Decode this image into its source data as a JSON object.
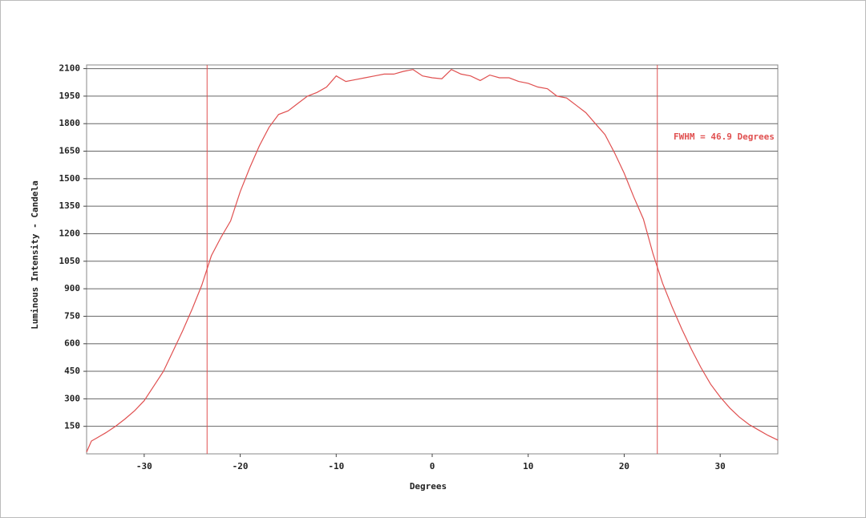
{
  "chart_data": {
    "type": "line",
    "x_label": "Degrees",
    "y_label": "Luminous Intensity - Candela",
    "annotation": "FWHM = 46.9 Degrees",
    "vlines": [
      -23.45,
      23.45
    ],
    "xlim": [
      -36,
      36
    ],
    "xticks": [
      -30,
      -20,
      -10,
      0,
      10,
      20,
      30
    ],
    "ylim": [
      0,
      2120
    ],
    "yticks": [
      150,
      300,
      450,
      600,
      750,
      900,
      1050,
      1200,
      1350,
      1500,
      1650,
      1800,
      1950,
      2100
    ],
    "grid": true,
    "color": "#e05050",
    "x": [
      -36,
      -35.5,
      -35,
      -34,
      -33,
      -32,
      -31,
      -30,
      -29,
      -28,
      -27,
      -26,
      -25,
      -24,
      -23,
      -22,
      -21,
      -20,
      -19,
      -18,
      -17,
      -16,
      -15,
      -14,
      -13,
      -12,
      -11,
      -10,
      -9,
      -8,
      -7,
      -6,
      -5,
      -4,
      -3,
      -2,
      -1,
      0,
      1,
      2,
      3,
      4,
      5,
      6,
      7,
      8,
      9,
      10,
      11,
      12,
      13,
      14,
      15,
      16,
      17,
      18,
      19,
      20,
      21,
      22,
      23,
      24,
      25,
      26,
      27,
      28,
      29,
      30,
      31,
      32,
      33,
      34,
      35,
      36
    ],
    "values": [
      10,
      70,
      85,
      115,
      150,
      190,
      235,
      290,
      370,
      450,
      560,
      670,
      790,
      920,
      1080,
      1180,
      1270,
      1430,
      1560,
      1680,
      1780,
      1850,
      1870,
      1910,
      1950,
      1970,
      2000,
      2060,
      2030,
      2040,
      2050,
      2060,
      2070,
      2070,
      2085,
      2095,
      2060,
      2050,
      2045,
      2095,
      2070,
      2060,
      2035,
      2065,
      2050,
      2050,
      2030,
      2020,
      2000,
      1990,
      1950,
      1940,
      1900,
      1860,
      1800,
      1740,
      1640,
      1530,
      1400,
      1280,
      1090,
      930,
      800,
      680,
      570,
      470,
      380,
      310,
      250,
      200,
      160,
      130,
      100,
      75
    ]
  }
}
